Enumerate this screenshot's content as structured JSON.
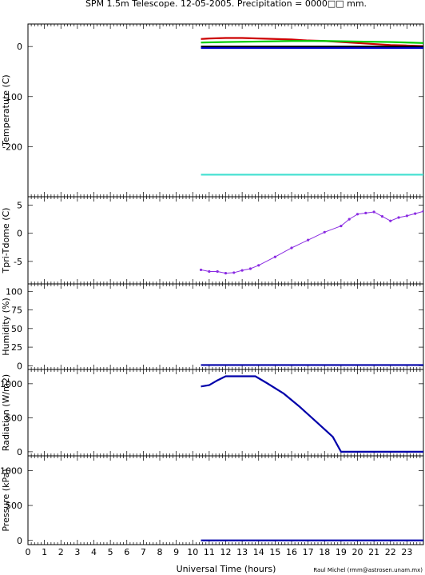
{
  "title": "SPM 1.5m Telescope. 12-05-2005. Precipitation = 0000□□ mm.",
  "credit": "Raul Michel (rmm@astrosen.unam.mx)",
  "chart_data": [
    {
      "type": "line",
      "ylabel": "Temperature (C)",
      "xlim": [
        0,
        24
      ],
      "ylim": [
        -300,
        45
      ],
      "yticks": [
        0,
        -100,
        -200
      ],
      "series": [
        {
          "color": "#cc0000",
          "x": [
            10.5,
            11,
            12,
            13,
            14,
            15,
            16,
            17,
            18,
            19,
            20,
            21,
            22,
            23,
            24
          ],
          "y": [
            15,
            16,
            17,
            17,
            16,
            15,
            14,
            12,
            11,
            9,
            7,
            5,
            3,
            2,
            1
          ]
        },
        {
          "color": "#00cc00",
          "x": [
            10.5,
            12,
            14,
            16,
            18,
            20,
            22,
            24
          ],
          "y": [
            8,
            9,
            10,
            11,
            11,
            10,
            9,
            7
          ]
        },
        {
          "color": "#000000",
          "x": [
            10.5,
            24
          ],
          "y": [
            0,
            0
          ]
        },
        {
          "color": "#0000cc",
          "x": [
            10.5,
            24
          ],
          "y": [
            -3,
            -3
          ]
        },
        {
          "color": "#40e0d0",
          "x": [
            10.5,
            24
          ],
          "y": [
            -256,
            -256
          ]
        }
      ]
    },
    {
      "type": "scatter",
      "ylabel": "Tpri-Tdome (C)",
      "xlim": [
        0,
        24
      ],
      "ylim": [
        -9,
        6.5
      ],
      "yticks": [
        5,
        0,
        -5
      ],
      "series": [
        {
          "color": "#8a2be2",
          "x": [
            10.5,
            11,
            11.5,
            12,
            12.5,
            13,
            13.5,
            14,
            15,
            16,
            17,
            18,
            19,
            19.5,
            20,
            20.5,
            21,
            21.5,
            22,
            22.5,
            23,
            23.5,
            24
          ],
          "y": [
            -6.5,
            -6.8,
            -6.8,
            -7.1,
            -7.0,
            -6.6,
            -6.3,
            -5.7,
            -4.2,
            -2.6,
            -1.2,
            0.2,
            1.3,
            2.5,
            3.4,
            3.6,
            3.8,
            3.0,
            2.2,
            2.8,
            3.1,
            3.5,
            3.9
          ]
        }
      ]
    },
    {
      "type": "line",
      "ylabel": "Humidity (%)",
      "xlim": [
        0,
        24
      ],
      "ylim": [
        -5,
        110
      ],
      "yticks": [
        0,
        25,
        50,
        75,
        100
      ],
      "series": [
        {
          "color": "#0000aa",
          "x": [
            10.5,
            24
          ],
          "y": [
            1,
            1
          ]
        }
      ]
    },
    {
      "type": "line",
      "ylabel": "Radiation (W/m2)",
      "xlim": [
        0,
        24
      ],
      "ylim": [
        -60,
        1210
      ],
      "yticks": [
        0,
        500,
        1000
      ],
      "series": [
        {
          "color": "#0000aa",
          "x": [
            10.5,
            11,
            11.5,
            12,
            13,
            13.8,
            14.5,
            15.5,
            16.5,
            17.5,
            18.5,
            19,
            24
          ],
          "y": [
            960,
            980,
            1050,
            1110,
            1110,
            1110,
            1010,
            860,
            660,
            440,
            220,
            0,
            0
          ]
        }
      ]
    },
    {
      "type": "line",
      "ylabel": "Pressure (kPa)",
      "xlim": [
        0,
        24
      ],
      "ylim": [
        -60,
        1210
      ],
      "yticks": [
        0,
        500,
        1000
      ],
      "series": [
        {
          "color": "#0000aa",
          "x": [
            10.5,
            24
          ],
          "y": [
            0,
            0
          ]
        }
      ]
    }
  ],
  "xaxis": {
    "label": "Universal Time (hours)",
    "ticks": [
      0,
      1,
      2,
      3,
      4,
      5,
      6,
      7,
      8,
      9,
      10,
      11,
      12,
      13,
      14,
      15,
      16,
      17,
      18,
      19,
      20,
      21,
      22,
      23
    ]
  }
}
